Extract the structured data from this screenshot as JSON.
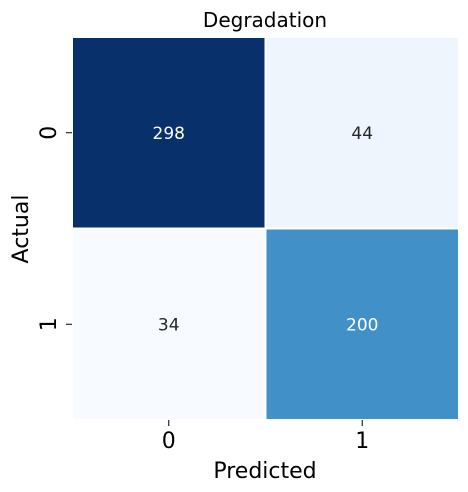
{
  "chart_data": {
    "type": "heatmap",
    "title": "Degradation",
    "xlabel": "Predicted",
    "ylabel": "Actual",
    "x_categories": [
      "0",
      "1"
    ],
    "y_categories": [
      "0",
      "1"
    ],
    "matrix": [
      [
        298,
        44
      ],
      [
        34,
        200
      ]
    ],
    "colormap": "Blues",
    "value_range": [
      34,
      298
    ],
    "colorbar": false,
    "grid": false
  },
  "cell_colors": [
    [
      "#08306b",
      "#eef5fd"
    ],
    [
      "#f7fbff",
      "#4191c8"
    ]
  ],
  "cell_text_colors": [
    [
      "#ffffff",
      "#262626"
    ],
    [
      "#262626",
      "#ffffff"
    ]
  ],
  "cell_separator_color": "#ffffff",
  "text_color": "#000000"
}
